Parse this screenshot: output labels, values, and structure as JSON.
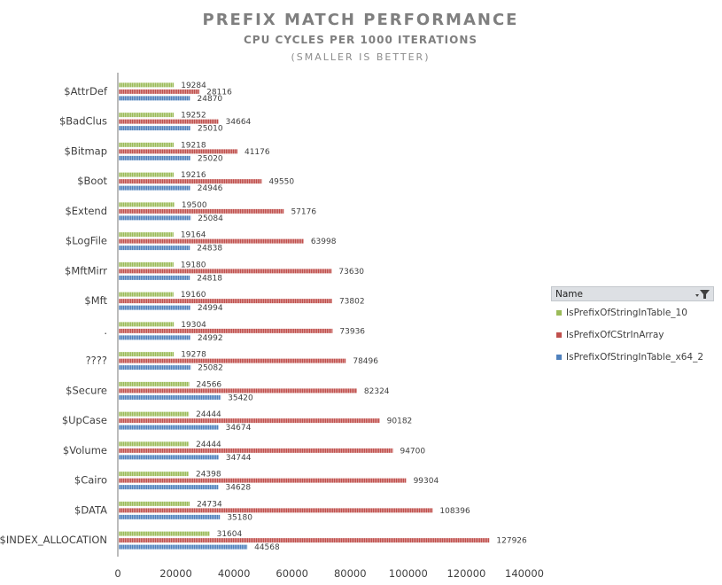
{
  "chart_data": {
    "type": "bar",
    "orientation": "horizontal",
    "title": "PREFIX MATCH PERFORMANCE",
    "subtitle": "CPU CYCLES PER 1000 ITERATIONS",
    "note": "(SMALLER IS BETTER)",
    "categories": [
      "$AttrDef",
      "$BadClus",
      "$Bitmap",
      "$Boot",
      "$Extend",
      "$LogFile",
      "$MftMirr",
      "$Mft",
      ".",
      "????",
      "$Secure",
      "$UpCase",
      "$Volume",
      "$Cairo",
      "$DATA",
      "$INDEX_ALLOCATION"
    ],
    "series": [
      {
        "name": "IsPrefixOfStringInTable_10",
        "color": "#9bbb59",
        "values": [
          19284,
          19252,
          19218,
          19216,
          19500,
          19164,
          19180,
          19160,
          19304,
          19278,
          24566,
          24444,
          24444,
          24398,
          24734,
          31604
        ]
      },
      {
        "name": "IsPrefixOfCStrInArray",
        "color": "#c0504d",
        "values": [
          28116,
          34664,
          41176,
          49550,
          57176,
          63998,
          73630,
          73802,
          73936,
          78496,
          82324,
          90182,
          94700,
          99304,
          108396,
          127926
        ]
      },
      {
        "name": "IsPrefixOfStringInTable_x64_2",
        "color": "#4f81bd",
        "values": [
          24870,
          25010,
          25020,
          24946,
          25084,
          24838,
          24818,
          24994,
          24992,
          25082,
          35420,
          34674,
          34744,
          34628,
          35180,
          44568
        ]
      }
    ],
    "xlim": [
      0,
      140000
    ],
    "xticks": [
      "0",
      "20000",
      "40000",
      "60000",
      "80000",
      "100000",
      "120000",
      "140000"
    ],
    "grid": false,
    "legend_position": "right"
  },
  "legend": {
    "header": "Name",
    "filter_icon": "filter-dropdown-icon"
  }
}
